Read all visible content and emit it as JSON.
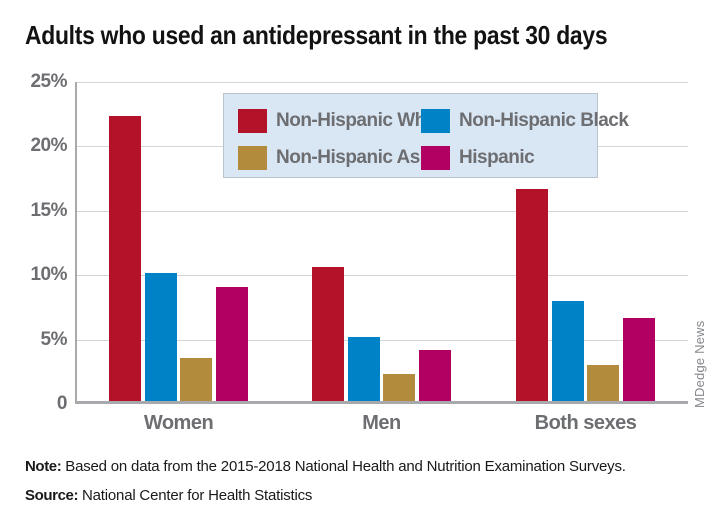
{
  "title": "Adults who used an antidepressant in the past 30 days",
  "watermark": "MDedge News",
  "footer": {
    "note_label": "Note:",
    "note_text": " Based on data from the 2015-2018 National Health and Nutrition Examination Surveys.",
    "source_label": "Source:",
    "source_text": " National Center for Health Statistics"
  },
  "colors": {
    "non_hispanic_white": "#b41228",
    "non_hispanic_black": "#0082c6",
    "non_hispanic_asian": "#b38b3c",
    "hispanic": "#b10061",
    "legend_background": "#d9e6f4",
    "axis_gray": "#a7a9ac",
    "label_gray": "#6d6e71"
  },
  "chart_data": {
    "type": "bar",
    "categories": [
      "Women",
      "Men",
      "Both sexes"
    ],
    "series": [
      {
        "name": "Non-Hispanic White",
        "color": "#b41228",
        "values": [
          22.3,
          10.5,
          16.6
        ]
      },
      {
        "name": "Non-Hispanic Black",
        "color": "#0082c6",
        "values": [
          10.0,
          5.0,
          7.8
        ]
      },
      {
        "name": "Non-Hispanic Asian",
        "color": "#b38b3c",
        "values": [
          3.4,
          2.1,
          2.8
        ]
      },
      {
        "name": "Hispanic",
        "color": "#b10061",
        "values": [
          8.9,
          4.0,
          6.5
        ]
      }
    ],
    "title": "Adults who used an antidepressant in the past 30 days",
    "xlabel": "",
    "ylabel": "",
    "ylim": [
      0,
      25
    ],
    "yticks": [
      {
        "value": 0,
        "label": "0"
      },
      {
        "value": 5,
        "label": "5%"
      },
      {
        "value": 10,
        "label": "10%"
      },
      {
        "value": 15,
        "label": "15%"
      },
      {
        "value": 20,
        "label": "20%"
      },
      {
        "value": 25,
        "label": "25%"
      }
    ],
    "grid": true,
    "legend_position": "top-center-inside"
  }
}
